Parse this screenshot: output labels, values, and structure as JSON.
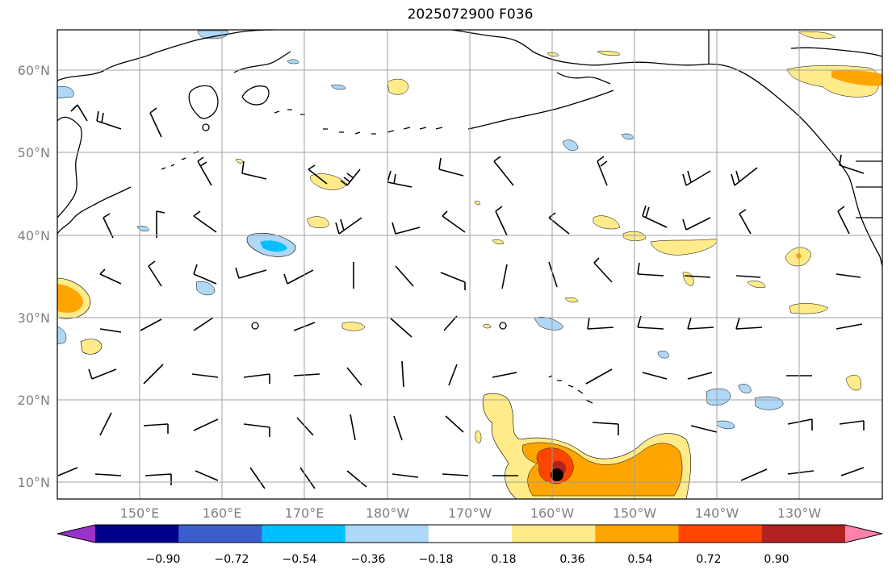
{
  "title": "2025072900 F036",
  "lat_labels": [
    "60°N",
    "50°N",
    "40°N",
    "30°N",
    "20°N",
    "10°N"
  ],
  "lon_labels": [
    "150°E",
    "160°E",
    "170°E",
    "180°W",
    "170°W",
    "160°W",
    "150°W",
    "140°W",
    "130°W"
  ],
  "colorbar": {
    "colors": [
      "#9932cc",
      "#00008b",
      "#3a5fcd",
      "#00bfff",
      "#add8f7",
      "#ffffff",
      "#ffeb8a",
      "#ffa500",
      "#ff4500",
      "#b22222",
      "#ff82ab"
    ],
    "ticks": [
      "−0.90",
      "−0.72",
      "−0.54",
      "−0.36",
      "−0.18",
      "0.18",
      "0.36",
      "0.54",
      "0.72",
      "0.90"
    ]
  },
  "colors": {
    "land_outline": "#000000",
    "grid": "#a0a0a0",
    "label": "#808080"
  }
}
